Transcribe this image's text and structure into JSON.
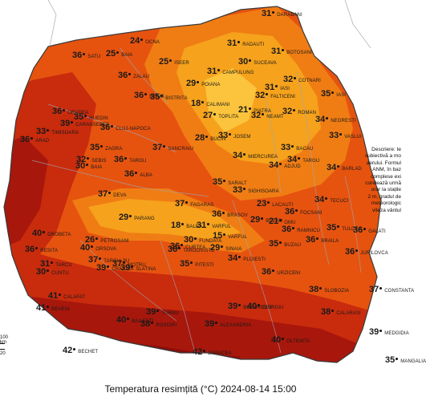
{
  "caption": "Temperatura resimțită (°C) 2024-08-14 15:00",
  "description_lines": [
    "Descriere: te",
    "subiectivă a mo",
    "aerului. Formul",
    "ANM, în baz",
    "complese exi",
    "corelează urmă",
    "orar la stațile",
    "2 m, gradul de",
    "meteorologic",
    "viteza vântul"
  ],
  "scale": {
    "label_top": "100 km",
    "label_bottom": "20"
  },
  "colors": {
    "t25": "#f6a21c",
    "t30": "#f07d14",
    "t35": "#e6530f",
    "t38": "#c92b0d",
    "t40": "#a8170c",
    "t42": "#8a0e0b",
    "border": "#3a3a3a",
    "rivers": "#9aa9b8"
  },
  "labels": [
    {
      "v": "31",
      "n": "DARABANI"
    },
    {
      "v": "31",
      "n": "RADAUTI"
    },
    {
      "v": "30",
      "n": "SUCEAVA"
    },
    {
      "v": "31",
      "n": "BOTOSANI"
    },
    {
      "v": "32",
      "n": "COTNARI"
    },
    {
      "v": "31",
      "n": "IASI"
    },
    {
      "v": "31",
      "n": "CAMPULUNG"
    },
    {
      "v": "32",
      "n": "FALTICENI"
    },
    {
      "v": "35",
      "n": "IASI"
    },
    {
      "v": "32",
      "n": "ROMAN"
    },
    {
      "v": "34",
      "n": "NEGRESTI"
    },
    {
      "v": "33",
      "n": "VASLUI"
    },
    {
      "v": "21",
      "n": "PIATRA"
    },
    {
      "v": "32",
      "n": "NEAMT"
    },
    {
      "v": "33",
      "n": "BACAU"
    },
    {
      "v": "34",
      "n": "BARLAD"
    },
    {
      "v": "24",
      "n": "OCNA"
    },
    {
      "v": "25",
      "n": "BAIA"
    },
    {
      "v": "36",
      "n": "SATU"
    },
    {
      "v": "36",
      "n": "ZALAU"
    },
    {
      "v": "25",
      "n": "ISEER"
    },
    {
      "v": "29",
      "n": "POIANA"
    },
    {
      "v": "36",
      "n": "BEIUS"
    },
    {
      "v": "35",
      "n": "BISTRITA"
    },
    {
      "v": "18",
      "n": "CALIMANI"
    },
    {
      "v": "27",
      "n": "TOPLITA"
    },
    {
      "v": "36",
      "n": "ORADEA"
    },
    {
      "v": "39",
      "n": "CARANSEBES"
    },
    {
      "v": "35",
      "n": "HUEDIN"
    },
    {
      "v": "36",
      "n": "CLUJ-NAPOCA"
    },
    {
      "v": "36",
      "n": "ARAD"
    },
    {
      "v": "35",
      "n": "ZAGRA"
    },
    {
      "v": "37",
      "n": "SANCRAIU"
    },
    {
      "v": "28",
      "n": "BUCIN"
    },
    {
      "v": "33",
      "n": "JOSEM"
    },
    {
      "v": "34",
      "n": "ADJUD"
    },
    {
      "v": "34",
      "n": "MIERCUREA"
    },
    {
      "v": "34",
      "n": "TARGU"
    },
    {
      "v": "34",
      "n": "TECUCI"
    },
    {
      "v": "33",
      "n": "TIMISOARA"
    },
    {
      "v": "32",
      "n": "SEBIS"
    },
    {
      "v": "30",
      "n": "BAIA"
    },
    {
      "v": "36",
      "n": "TARGU"
    },
    {
      "v": "36",
      "n": "ALBA"
    },
    {
      "v": "35",
      "n": "SARALT"
    },
    {
      "v": "33",
      "n": "SIGHISOARA"
    },
    {
      "v": "36",
      "n": "FOCSANI"
    },
    {
      "v": "36",
      "n": "GALATI"
    },
    {
      "v": "23",
      "n": "LACAUTI"
    },
    {
      "v": "37",
      "n": "FAGARAS"
    },
    {
      "v": "36",
      "n": "BRASOV"
    },
    {
      "v": "36",
      "n": "RAMNICU"
    },
    {
      "v": "35",
      "n": "TULCEA"
    },
    {
      "v": "37",
      "n": "DEVA"
    },
    {
      "v": "29",
      "n": "PARANG"
    },
    {
      "v": "18",
      "n": "BALEA"
    },
    {
      "v": "31",
      "n": "VARFUL"
    },
    {
      "v": "21",
      "n": "OMU"
    },
    {
      "v": "29",
      "n": "BUZAU"
    },
    {
      "v": "36",
      "n": "BRAILA"
    },
    {
      "v": "26",
      "n": "PETROSANI"
    },
    {
      "v": "30",
      "n": "FUNDATA"
    },
    {
      "v": "15",
      "n": "VARFUL"
    },
    {
      "v": "35",
      "n": "BUZAU"
    },
    {
      "v": "40",
      "n": "DROBETA"
    },
    {
      "v": "36",
      "n": "RESITA"
    },
    {
      "v": "36",
      "n": "CURTEA"
    },
    {
      "v": "29",
      "n": "SINAIA"
    },
    {
      "v": "34",
      "n": "PLOIESTI"
    },
    {
      "v": "36",
      "n": "URZICENI"
    },
    {
      "v": "37",
      "n": "CONSTANTA"
    },
    {
      "v": "36",
      "n": "JURILOVCA"
    },
    {
      "v": "39",
      "n": "CRAIOVA"
    },
    {
      "v": "39",
      "n": "SLATINA"
    },
    {
      "v": "35",
      "n": "PITESTI"
    },
    {
      "v": "36",
      "n": "TARGOVISTE"
    },
    {
      "v": "39",
      "n": "BUCURESTI"
    },
    {
      "v": "38",
      "n": "SLOBOZIA"
    },
    {
      "v": "38",
      "n": "CALARASI"
    },
    {
      "v": "39",
      "n": "MEDGIDIA"
    },
    {
      "v": "40",
      "n": "GIURGIU"
    },
    {
      "v": "41",
      "n": "CALAFAT"
    },
    {
      "v": "42",
      "n": "BECHET"
    },
    {
      "v": "42",
      "n": "ZIMNICEA"
    },
    {
      "v": "40",
      "n": "OLTENITA"
    },
    {
      "v": "39",
      "n": "ALEXANDRIA"
    },
    {
      "v": "38",
      "n": "ROSIORI"
    },
    {
      "v": "35",
      "n": "MANGALIA"
    },
    {
      "v": "39",
      "n": "TURNU"
    },
    {
      "v": "40",
      "n": "BAILESTI"
    },
    {
      "v": "37",
      "n": "TARGU JIU"
    },
    {
      "v": "37",
      "n": "MOTRU"
    },
    {
      "v": "30",
      "n": "CUNTU"
    },
    {
      "v": "31",
      "n": "TARCU"
    },
    {
      "v": "40",
      "n": "ORSOVA"
    },
    {
      "v": "41",
      "n": "BEVENI"
    }
  ]
}
